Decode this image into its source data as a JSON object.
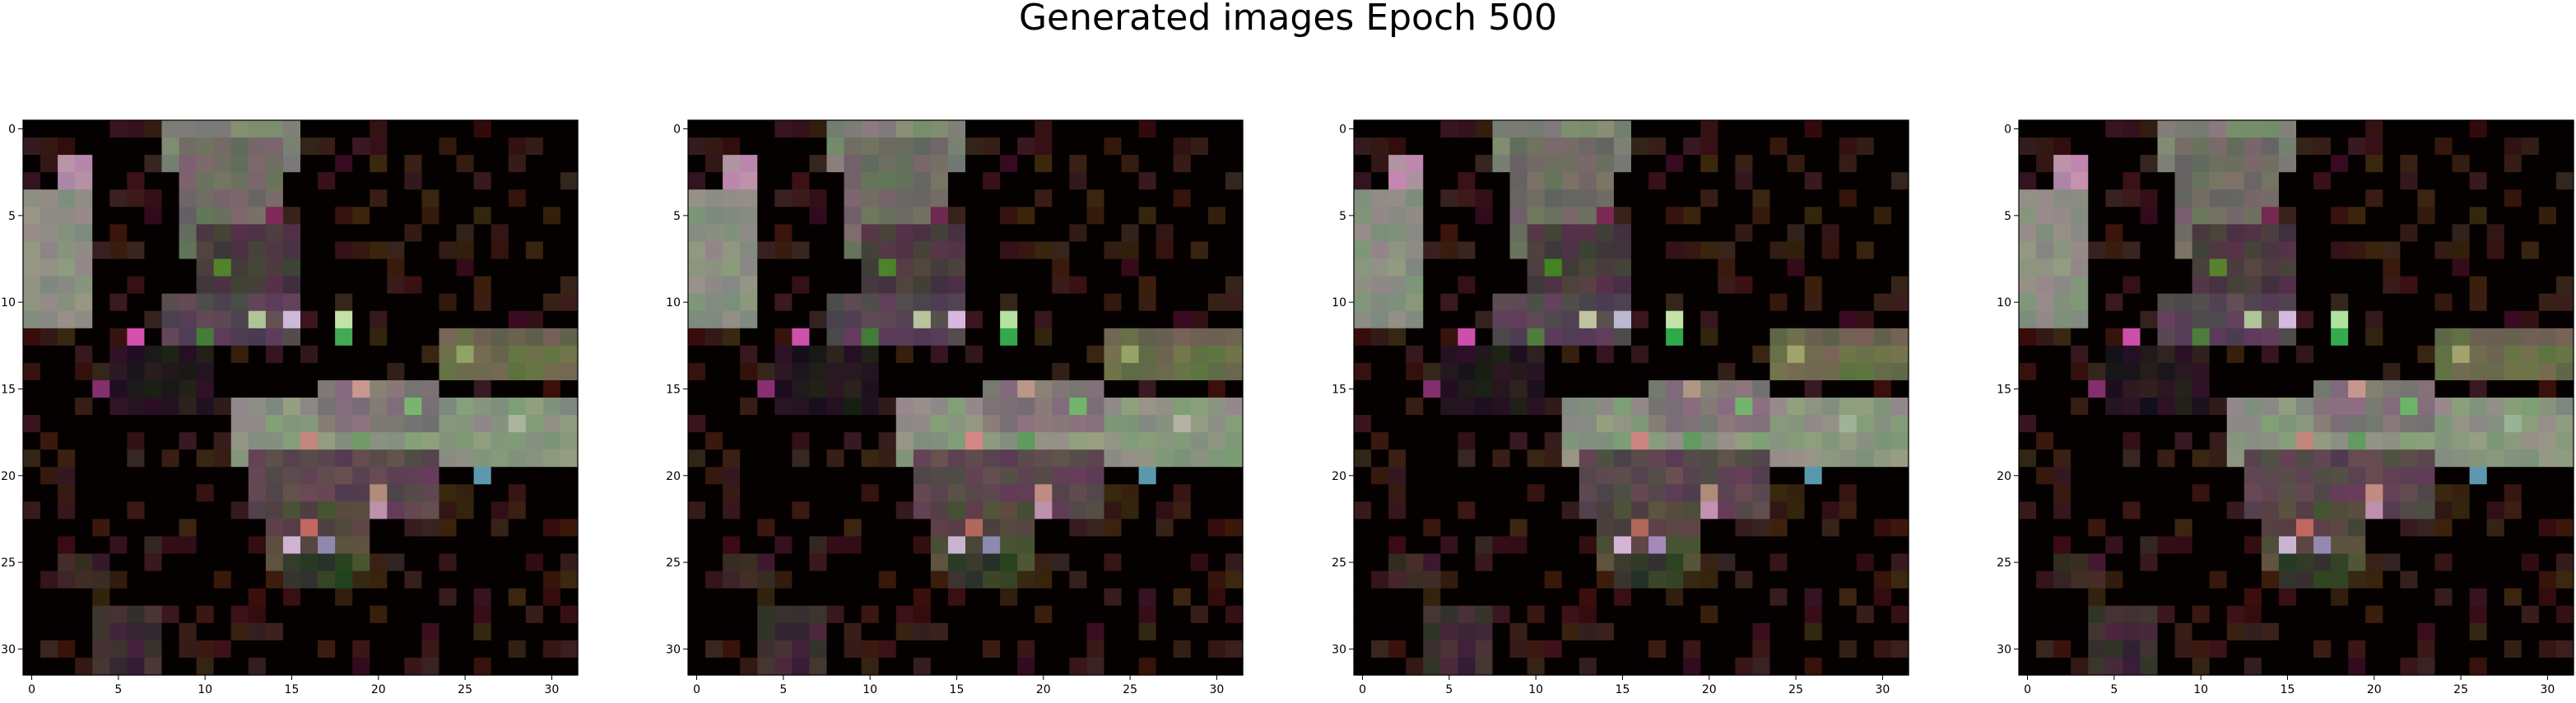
{
  "title": "Generated images Epoch 500",
  "chart_data": {
    "type": "heatmap",
    "title": "Generated images Epoch 500",
    "grid_size": 32,
    "panel_count": 4,
    "xlim": [
      0,
      31
    ],
    "ylim": [
      31,
      0
    ],
    "xticks": [
      0,
      5,
      10,
      15,
      20,
      25,
      30
    ],
    "yticks": [
      0,
      5,
      10,
      15,
      20,
      25,
      30
    ],
    "xtick_labels": [
      "0",
      "5",
      "10",
      "15",
      "20",
      "25",
      "30"
    ],
    "ytick_labels": [
      "0",
      "5",
      "10",
      "15",
      "20",
      "25",
      "30"
    ],
    "background_color": "#050101",
    "regions": [
      {
        "rows": [
          0,
          2
        ],
        "cols": [
          8,
          15
        ],
        "color": "#7e8374"
      },
      {
        "rows": [
          1,
          7
        ],
        "cols": [
          9,
          14
        ],
        "color": "#706b64"
      },
      {
        "rows": [
          2,
          3
        ],
        "cols": [
          2,
          3
        ],
        "color": "#b98fa8"
      },
      {
        "rows": [
          4,
          11
        ],
        "cols": [
          0,
          3
        ],
        "color": "#8a9280"
      },
      {
        "rows": [
          6,
          10
        ],
        "cols": [
          10,
          15
        ],
        "color": "#4a3a3f"
      },
      {
        "rows": [
          10,
          12
        ],
        "cols": [
          8,
          15
        ],
        "color": "#574752"
      },
      {
        "rows": [
          12,
          14
        ],
        "cols": [
          24,
          31
        ],
        "color": "#6a6a4c"
      },
      {
        "rows": [
          13,
          16
        ],
        "cols": [
          5,
          10
        ],
        "color": "#221a1c"
      },
      {
        "rows": [
          16,
          19
        ],
        "cols": [
          12,
          31
        ],
        "color": "#8a9480"
      },
      {
        "rows": [
          15,
          17
        ],
        "cols": [
          17,
          23
        ],
        "color": "#807676"
      },
      {
        "rows": [
          19,
          22
        ],
        "cols": [
          13,
          23
        ],
        "color": "#5a474e"
      },
      {
        "rows": [
          22,
          25
        ],
        "cols": [
          14,
          19
        ],
        "color": "#524a3d"
      },
      {
        "rows": [
          25,
          26
        ],
        "cols": [
          15,
          18
        ],
        "color": "#2f3a28"
      },
      {
        "rows": [
          25,
          26
        ],
        "cols": [
          2,
          4
        ],
        "color": "#3a2228"
      },
      {
        "rows": [
          28,
          31
        ],
        "cols": [
          4,
          7
        ],
        "color": "#3e2a34"
      }
    ],
    "highlight_pixels": [
      {
        "row": 12,
        "col": 6,
        "color": "#d84bb2"
      },
      {
        "row": 11,
        "col": 18,
        "color": "#b7d6a8"
      },
      {
        "row": 12,
        "col": 18,
        "color": "#39b24b"
      },
      {
        "row": 11,
        "col": 13,
        "color": "#b9c29f"
      },
      {
        "row": 11,
        "col": 15,
        "color": "#c8c0d4"
      },
      {
        "row": 15,
        "col": 4,
        "color": "#8a2b73"
      },
      {
        "row": 20,
        "col": 26,
        "color": "#5b8fb2"
      },
      {
        "row": 24,
        "col": 15,
        "color": "#cdb7d0"
      },
      {
        "row": 22,
        "col": 20,
        "color": "#b987b0"
      },
      {
        "row": 21,
        "col": 20,
        "color": "#b98b7f"
      },
      {
        "row": 16,
        "col": 22,
        "color": "#6fb56a"
      },
      {
        "row": 17,
        "col": 28,
        "color": "#a7b69a"
      },
      {
        "row": 18,
        "col": 16,
        "color": "#c98c7e"
      },
      {
        "row": 15,
        "col": 19,
        "color": "#bd8c90"
      },
      {
        "row": 13,
        "col": 25,
        "color": "#9ca26b"
      },
      {
        "row": 23,
        "col": 16,
        "color": "#b86d5b"
      },
      {
        "row": 10,
        "col": 3,
        "color": "#8c9a79"
      },
      {
        "row": 8,
        "col": 11,
        "color": "#4a7a2c"
      },
      {
        "row": 5,
        "col": 14,
        "color": "#7a2d53"
      },
      {
        "row": 12,
        "col": 10,
        "color": "#4d7740"
      },
      {
        "row": 18,
        "col": 19,
        "color": "#6aa55f"
      },
      {
        "row": 24,
        "col": 17,
        "color": "#9a93b0"
      }
    ]
  }
}
